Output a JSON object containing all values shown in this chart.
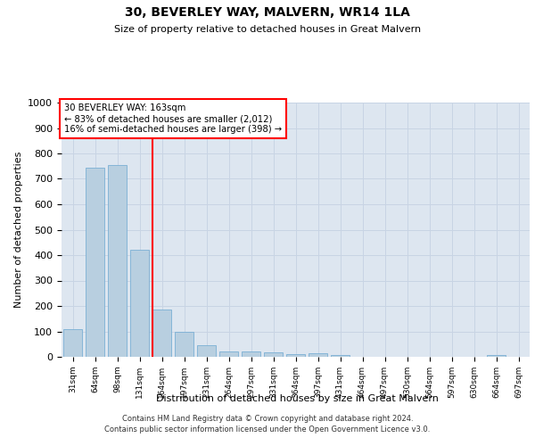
{
  "title": "30, BEVERLEY WAY, MALVERN, WR14 1LA",
  "subtitle": "Size of property relative to detached houses in Great Malvern",
  "xlabel": "Distribution of detached houses by size in Great Malvern",
  "ylabel": "Number of detached properties",
  "categories": [
    "31sqm",
    "64sqm",
    "98sqm",
    "131sqm",
    "164sqm",
    "197sqm",
    "231sqm",
    "264sqm",
    "297sqm",
    "331sqm",
    "364sqm",
    "397sqm",
    "431sqm",
    "464sqm",
    "497sqm",
    "530sqm",
    "564sqm",
    "597sqm",
    "630sqm",
    "664sqm",
    "697sqm"
  ],
  "values": [
    110,
    745,
    755,
    420,
    185,
    97,
    45,
    22,
    22,
    16,
    10,
    13,
    8,
    0,
    0,
    0,
    0,
    0,
    0,
    8,
    0
  ],
  "bar_color": "#b8cfe0",
  "bar_edge_color": "#7aafd4",
  "highlight_bar_index": 4,
  "annotation_line1": "30 BEVERLEY WAY: 163sqm",
  "annotation_line2": "← 83% of detached houses are smaller (2,012)",
  "annotation_line3": "16% of semi-detached houses are larger (398) →",
  "ylim": [
    0,
    1000
  ],
  "yticks": [
    0,
    100,
    200,
    300,
    400,
    500,
    600,
    700,
    800,
    900,
    1000
  ],
  "grid_color": "#c8d4e4",
  "bg_color": "#dde6f0",
  "footer_line1": "Contains HM Land Registry data © Crown copyright and database right 2024.",
  "footer_line2": "Contains public sector information licensed under the Open Government Licence v3.0."
}
